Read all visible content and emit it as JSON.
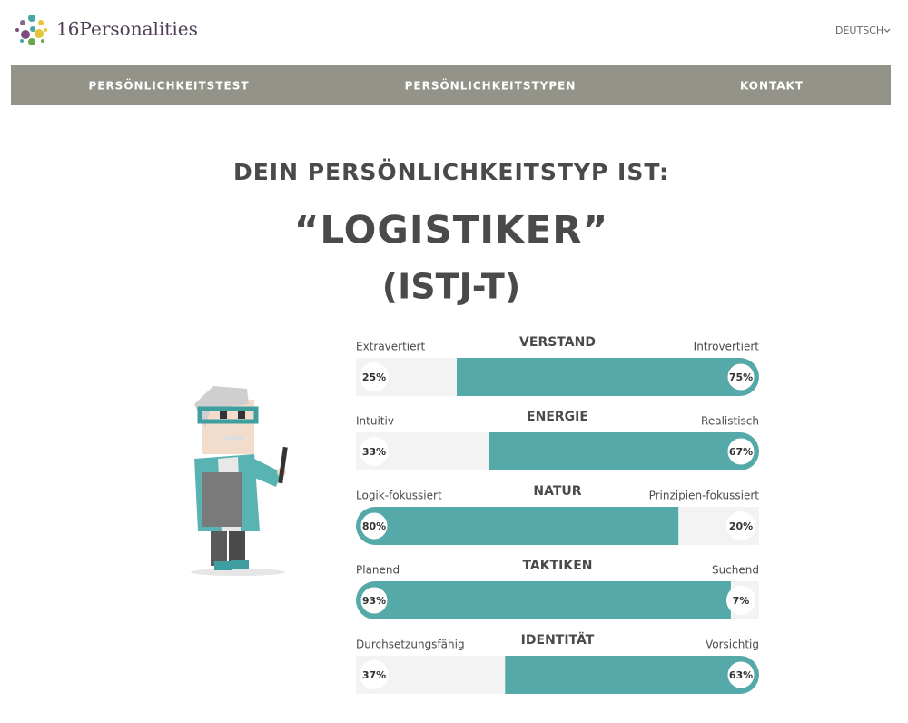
{
  "header": {
    "logo": "16Personalities",
    "language": "DEUTSCH"
  },
  "nav": [
    "PERSÖNLICHKEITSTEST",
    "PERSÖNLICHKEITSTYPEN",
    "KONTAKT"
  ],
  "result": {
    "heading": "DEIN PERSÖNLICHKEITSTYP IST:",
    "type_name": "“LOGISTIKER”",
    "code": "(ISTJ-T)"
  },
  "traits": [
    {
      "name": "VERSTAND",
      "left": {
        "name": "Extravertiert",
        "value": 25,
        "value_label": "25%"
      },
      "right": {
        "name": "Introvertiert",
        "value": 75,
        "value_label": "75%"
      }
    },
    {
      "name": "ENERGIE",
      "left": {
        "name": "Intuitiv",
        "value": 33,
        "value_label": "33%"
      },
      "right": {
        "name": "Realistisch",
        "value": 67,
        "value_label": "67%"
      }
    },
    {
      "name": "NATUR",
      "left": {
        "name": "Logik-fokussiert",
        "value": 80,
        "value_label": "80%"
      },
      "right": {
        "name": "Prinzipien-fokussiert",
        "value": 20,
        "value_label": "20%"
      }
    },
    {
      "name": "TAKTIKEN",
      "left": {
        "name": "Planend",
        "value": 93,
        "value_label": "93%"
      },
      "right": {
        "name": "Suchend",
        "value": 7,
        "value_label": "7%"
      }
    },
    {
      "name": "IDENTITÄT",
      "left": {
        "name": "Durchsetzungsfähig",
        "value": 37,
        "value_label": "37%"
      },
      "right": {
        "name": "Vorsichtig",
        "value": 63,
        "value_label": "63%"
      }
    }
  ]
}
